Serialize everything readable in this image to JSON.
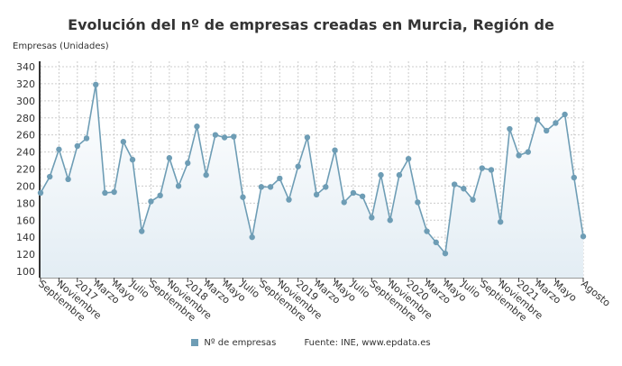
{
  "chart_data": {
    "type": "line",
    "title": "Evolución del nº de empresas creadas en Murcia, Región de",
    "ylabel": "Empresas (Unidades)",
    "xlabel": "",
    "ylim": [
      95,
      345
    ],
    "yticks": [
      100,
      120,
      140,
      160,
      180,
      200,
      220,
      240,
      260,
      280,
      300,
      320,
      340
    ],
    "grid": true,
    "color": "#6e9db5",
    "x_tick_labels": [
      {
        "index": 0,
        "label": "Septiembre"
      },
      {
        "index": 2,
        "label": "Noviembre"
      },
      {
        "index": 4,
        "label": "2017"
      },
      {
        "index": 6,
        "label": "Marzo"
      },
      {
        "index": 8,
        "label": "Mayo"
      },
      {
        "index": 10,
        "label": "Julio"
      },
      {
        "index": 12,
        "label": "Septiembre"
      },
      {
        "index": 14,
        "label": "Noviembre"
      },
      {
        "index": 16,
        "label": "2018"
      },
      {
        "index": 18,
        "label": "Marzo"
      },
      {
        "index": 20,
        "label": "Mayo"
      },
      {
        "index": 22,
        "label": "Julio"
      },
      {
        "index": 24,
        "label": "Septiembre"
      },
      {
        "index": 26,
        "label": "Noviembre"
      },
      {
        "index": 28,
        "label": "2019"
      },
      {
        "index": 30,
        "label": "Marzo"
      },
      {
        "index": 32,
        "label": "Mayo"
      },
      {
        "index": 34,
        "label": "Julio"
      },
      {
        "index": 36,
        "label": "Septiembre"
      },
      {
        "index": 38,
        "label": "Noviembre"
      },
      {
        "index": 40,
        "label": "2020"
      },
      {
        "index": 42,
        "label": "Marzo"
      },
      {
        "index": 44,
        "label": "Mayo"
      },
      {
        "index": 46,
        "label": "Julio"
      },
      {
        "index": 48,
        "label": "Septiembre"
      },
      {
        "index": 50,
        "label": "Noviembre"
      },
      {
        "index": 52,
        "label": "2021"
      },
      {
        "index": 54,
        "label": "Marzo"
      },
      {
        "index": 56,
        "label": "Mayo"
      },
      {
        "index": 59,
        "label": "Agosto"
      }
    ],
    "series": [
      {
        "name": "Nº de empresas",
        "values": [
          192,
          211,
          243,
          208,
          247,
          256,
          319,
          192,
          193,
          252,
          231,
          147,
          182,
          189,
          233,
          200,
          227,
          270,
          213,
          260,
          257,
          258,
          187,
          140,
          199,
          199,
          209,
          184,
          223,
          257,
          190,
          199,
          242,
          181,
          192,
          188,
          163,
          213,
          160,
          213,
          232,
          181,
          147,
          134,
          121,
          202,
          197,
          184,
          221,
          219,
          158,
          267,
          236,
          240,
          278,
          265,
          274,
          284,
          210,
          141
        ]
      }
    ],
    "legend_position": "bottom"
  },
  "source": "Fuente: INE, www.epdata.es"
}
